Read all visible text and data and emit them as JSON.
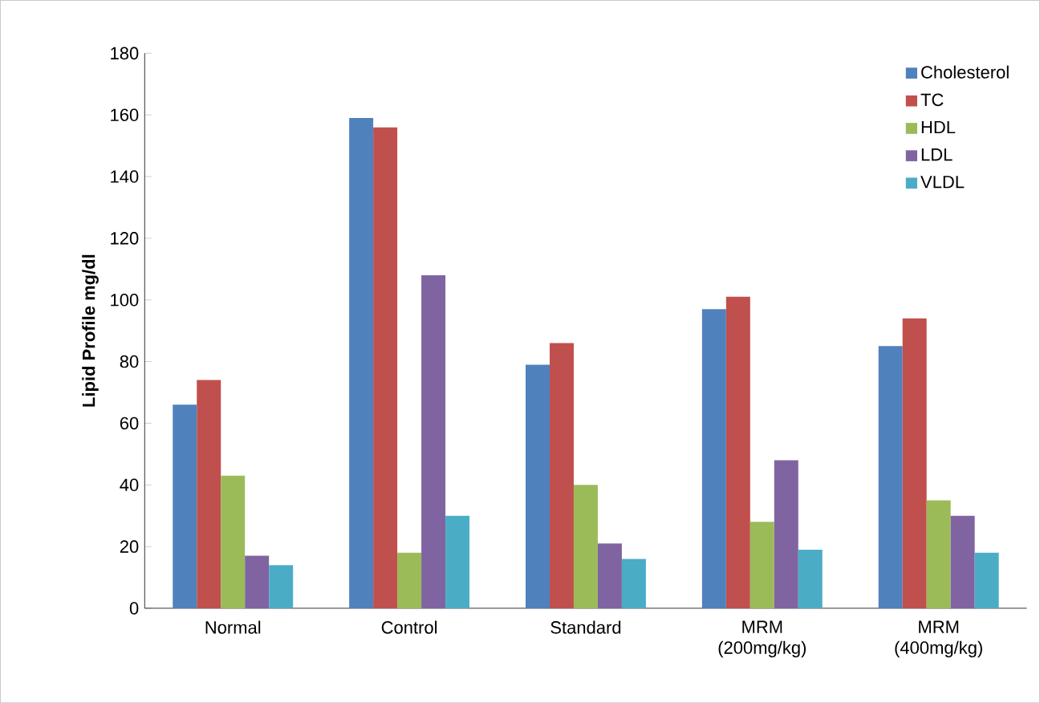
{
  "chart_data": {
    "type": "bar",
    "ylabel": "Lipid Profile mg/dl",
    "categories": [
      "Normal",
      "Control",
      "Standard",
      "MRM (200mg/kg)",
      "MRM (400mg/kg)"
    ],
    "series": [
      {
        "name": "Cholesterol",
        "color": "#4f81bd",
        "values": [
          66,
          159,
          79,
          97,
          85
        ]
      },
      {
        "name": "TC",
        "color": "#c0504d",
        "values": [
          74,
          156,
          86,
          101,
          94
        ]
      },
      {
        "name": "HDL",
        "color": "#9bbb59",
        "values": [
          43,
          18,
          40,
          28,
          35
        ]
      },
      {
        "name": "LDL",
        "color": "#8064a2",
        "values": [
          17,
          108,
          21,
          48,
          30
        ]
      },
      {
        "name": "VLDL",
        "color": "#4bacc6",
        "values": [
          14,
          30,
          16,
          19,
          18
        ]
      }
    ],
    "ylim": [
      0,
      180
    ],
    "yticks": [
      0,
      20,
      40,
      60,
      80,
      100,
      120,
      140,
      160,
      180
    ],
    "legend": "top right",
    "grid": false
  }
}
